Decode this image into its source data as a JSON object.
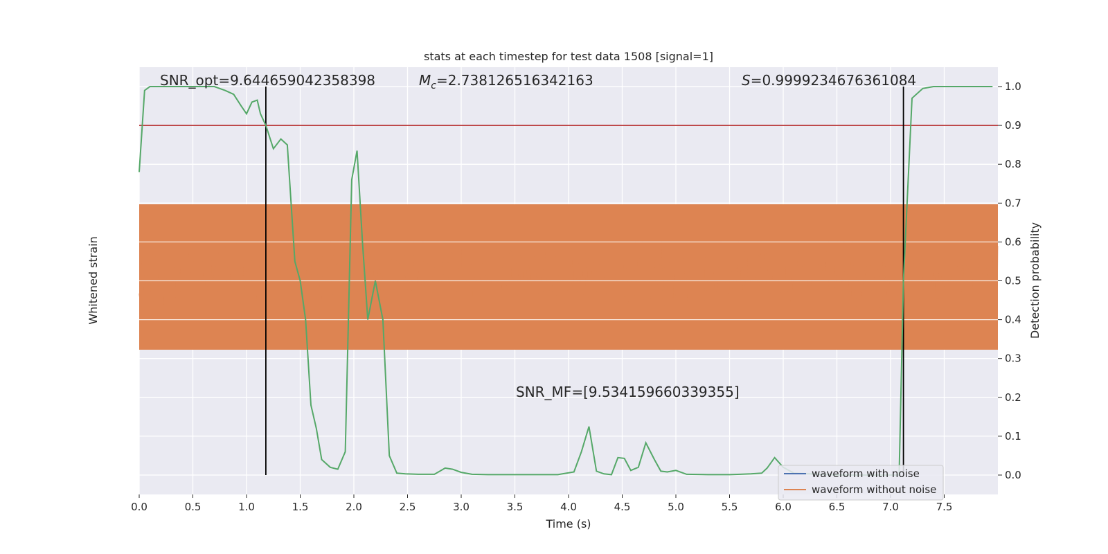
{
  "chart_data": {
    "type": "line",
    "title": "stats at each timestep for test data 1508 [signal=1]",
    "xlabel": "Time (s)",
    "ylabel_left": "Whitened strain",
    "ylabel_right": "Detection probability",
    "xlim": [
      0.0,
      8.0
    ],
    "ylim_right": [
      -0.05,
      1.05
    ],
    "x_ticks": [
      "0.0",
      "0.5",
      "1.0",
      "1.5",
      "2.0",
      "2.5",
      "3.0",
      "3.5",
      "4.0",
      "4.5",
      "5.0",
      "5.5",
      "6.0",
      "6.5",
      "7.0",
      "7.5"
    ],
    "y_right_ticks": [
      "0.0",
      "0.1",
      "0.2",
      "0.3",
      "0.4",
      "0.5",
      "0.6",
      "0.7",
      "0.8",
      "0.9",
      "1.0"
    ],
    "grid": true,
    "legend_position": "lower-right",
    "annotations": {
      "snr_opt": "SNR_opt=9.644659042358398",
      "mc_symbol": "M",
      "mc_sub": "c",
      "mc_value": "=2.738126516342163",
      "s_symbol": "S",
      "s_value": "=0.9999234676361084",
      "snr_mf": "SNR_MF=[9.534159660339355]"
    },
    "threshold": {
      "value": 0.9,
      "color": "#b22222"
    },
    "vertical_lines": [
      1.18,
      7.12
    ],
    "series": [
      {
        "name": "waveform with noise",
        "color": "#4c72b0"
      },
      {
        "name": "waveform without noise",
        "color": "#dd8452"
      },
      {
        "color": "#55a868",
        "x": [
          0.0,
          0.05,
          0.1,
          0.2,
          0.3,
          0.4,
          0.5,
          0.6,
          0.7,
          0.8,
          0.88,
          0.95,
          1.0,
          1.05,
          1.1,
          1.13,
          1.18,
          1.25,
          1.32,
          1.38,
          1.45,
          1.5,
          1.55,
          1.6,
          1.65,
          1.7,
          1.78,
          1.85,
          1.92,
          1.98,
          2.03,
          2.08,
          2.13,
          2.2,
          2.27,
          2.33,
          2.4,
          2.48,
          2.6,
          2.75,
          2.85,
          2.92,
          3.0,
          3.1,
          3.25,
          3.5,
          3.7,
          3.9,
          4.05,
          4.12,
          4.19,
          4.26,
          4.33,
          4.4,
          4.46,
          4.52,
          4.58,
          4.65,
          4.72,
          4.8,
          4.86,
          4.92,
          5.0,
          5.1,
          5.3,
          5.5,
          5.6,
          5.7,
          5.8,
          5.85,
          5.92,
          6.0,
          6.1,
          6.5,
          6.9,
          7.08,
          7.12,
          7.2,
          7.3,
          7.4,
          7.5,
          7.6,
          7.7,
          7.8,
          7.9,
          7.95
        ],
        "y": [
          0.78,
          0.99,
          1.0,
          1.0,
          1.0,
          1.0,
          1.0,
          1.0,
          1.0,
          0.99,
          0.98,
          0.95,
          0.93,
          0.96,
          0.965,
          0.93,
          0.9,
          0.84,
          0.865,
          0.85,
          0.55,
          0.5,
          0.4,
          0.18,
          0.12,
          0.04,
          0.02,
          0.015,
          0.06,
          0.76,
          0.835,
          0.6,
          0.4,
          0.5,
          0.4,
          0.05,
          0.005,
          0.003,
          0.002,
          0.002,
          0.018,
          0.015,
          0.007,
          0.002,
          0.001,
          0.001,
          0.001,
          0.001,
          0.008,
          0.06,
          0.125,
          0.01,
          0.003,
          0.001,
          0.045,
          0.043,
          0.012,
          0.02,
          0.083,
          0.04,
          0.01,
          0.008,
          0.012,
          0.002,
          0.001,
          0.001,
          0.002,
          0.003,
          0.005,
          0.018,
          0.045,
          0.02,
          0.005,
          0.0,
          0.0,
          0.0,
          0.5,
          0.97,
          0.995,
          1.0,
          1.0,
          1.0,
          1.0,
          1.0,
          1.0,
          1.0
        ]
      }
    ]
  }
}
